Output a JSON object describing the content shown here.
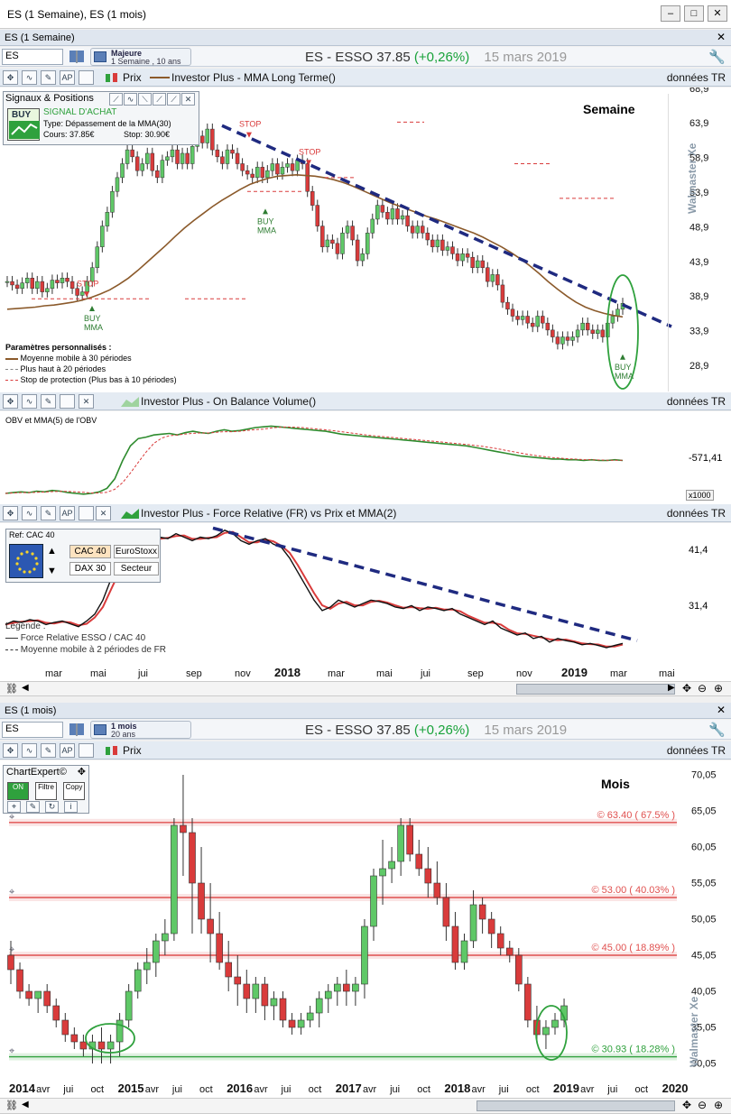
{
  "window": {
    "title": "ES (1 Semaine), ES (1 mois)"
  },
  "weekly": {
    "section_title": "ES (1 Semaine)",
    "symbol": "ES",
    "period": {
      "line1": "Majeure",
      "line2": "1 Semaine , 10 ans"
    },
    "quote": {
      "name": "ES - ESSO",
      "price": "37.85",
      "change": "(+0,26%)",
      "date": "15 mars 2019"
    },
    "price_bar": {
      "prix_label": "Prix",
      "indicator": "Investor Plus - MMA Long Terme()",
      "data_label": "données TR"
    },
    "signals": {
      "title": "Signaux & Positions",
      "buy_label": "BUY",
      "signal": "SIGNAL D'ACHAT",
      "type": "Type:   Dépassement de la MMA(30)",
      "cours": "Cours: 37.85€",
      "stop": "Stop: 30.90€"
    },
    "corner_label": "Semaine",
    "annotations": {
      "stop": "STOP",
      "buy": "BUY",
      "mma": "MMA"
    },
    "params": {
      "title": "Paramètres personnalisés :",
      "items": [
        "Moyenne mobile à 30 périodes",
        "Plus haut à 20 périodes",
        "Stop de protection (Plus bas à 10 périodes)"
      ]
    },
    "watermark": "Walmaster Xe",
    "obv_bar": {
      "indicator": "Investor Plus - On Balance Volume()",
      "data_label": "données TR"
    },
    "obv": {
      "label": "OBV et MMA(5) de l'OBV",
      "tick": "-571,41",
      "multiplier": "x1000"
    },
    "fr_bar": {
      "indicator": "Investor Plus - Force Relative (FR) vs Prix et MMA(2)",
      "data_label": "données TR"
    },
    "fr": {
      "ref": "Ref: CAC 40",
      "buttons": [
        "CAC 40",
        "EuroStoxx",
        "DAX 30",
        "Secteur"
      ],
      "ticks": [
        "41,4",
        "31,4"
      ],
      "legend_title": "Legende :",
      "legend": [
        "Force Relative ESSO / CAC 40",
        "Moyenne mobile à 2 périodes de FR"
      ]
    },
    "x_labels": [
      "mar",
      "mai",
      "jui",
      "sep",
      "nov",
      "2018",
      "mar",
      "mai",
      "jui",
      "sep",
      "nov",
      "2019",
      "mar",
      "mai"
    ]
  },
  "monthly": {
    "section_title": "ES (1 mois)",
    "symbol": "ES",
    "period": {
      "line1": "1 mois",
      "line2": "20 ans"
    },
    "quote": {
      "name": "ES - ESSO",
      "price": "37.85",
      "change": "(+0,26%)",
      "date": "15 mars 2019"
    },
    "price_bar": {
      "prix_label": "Prix",
      "data_label": "données TR"
    },
    "chartexpert": {
      "title": "ChartExpert©",
      "on": "ON",
      "filtre": "Filtre",
      "copy": "Copy"
    },
    "corner_label": "Mois",
    "levels": [
      {
        "label": "© 63.40 ( 67.5% )",
        "value": 63.4,
        "color": "#e0504f"
      },
      {
        "label": "© 53.00 ( 40.03% )",
        "value": 53.0,
        "color": "#e0504f"
      },
      {
        "label": "© 45.00 ( 18.89% )",
        "value": 45.0,
        "color": "#e0504f"
      },
      {
        "label": "© 30.93 ( 18.28% )",
        "value": 30.93,
        "color": "#2fa13d"
      }
    ],
    "watermark": "Walmaster Xe",
    "x_labels": [
      "2014",
      "avr",
      "jui",
      "oct",
      "2015",
      "avr",
      "jui",
      "oct",
      "2016",
      "avr",
      "jui",
      "oct",
      "2017",
      "avr",
      "jui",
      "oct",
      "2018",
      "avr",
      "jui",
      "oct",
      "2019",
      "avr",
      "jui",
      "oct",
      "2020"
    ]
  },
  "chart_data": [
    {
      "type": "candlestick",
      "title": "ES - ESSO (1 Semaine)",
      "ylim": [
        25,
        69
      ],
      "y_ticks": [
        "68,9",
        "63,9",
        "58,9",
        "53,9",
        "48,9",
        "43,9",
        "38,9",
        "33,9",
        "28,9"
      ],
      "x_range": [
        "2017-02",
        "2019-05"
      ],
      "close_path": [
        41,
        40.5,
        40,
        40.8,
        41.5,
        40,
        41,
        39.5,
        40,
        41.2,
        40.8,
        41.5,
        41,
        40,
        39,
        39.5,
        41,
        43,
        46,
        49,
        51,
        54,
        56,
        58,
        60,
        59,
        57,
        58,
        59.5,
        57,
        56,
        58.5,
        59,
        60,
        58,
        59.5,
        58,
        60.5,
        62,
        61,
        63,
        60,
        59,
        58,
        60,
        59.5,
        58,
        57,
        56.5,
        56,
        57.5,
        56,
        57,
        58,
        56.5,
        57.5,
        58,
        57,
        58.5,
        58,
        54,
        52,
        49,
        46,
        47,
        46.5,
        45,
        48,
        49,
        47,
        44,
        45,
        48,
        50,
        52,
        51,
        50,
        51.5,
        50,
        50.5,
        49,
        48,
        49,
        48,
        47,
        46,
        47,
        45.5,
        46,
        45,
        44,
        45,
        44.5,
        43,
        44,
        43,
        41,
        42,
        40.5,
        38,
        37,
        36,
        35.5,
        36,
        35,
        34.5,
        36,
        35,
        34,
        33,
        32,
        33,
        32.5,
        33,
        34,
        35,
        34,
        33.5,
        34,
        33,
        35,
        36,
        37,
        37.85
      ],
      "mma30": [
        37,
        37.1,
        37.2,
        37.3,
        37.5,
        37.6,
        37.8,
        38,
        38.3,
        38.7,
        39.2,
        39.8,
        40.6,
        41.5,
        42.6,
        43.8,
        45,
        46.2,
        47.5,
        48.7,
        49.8,
        50.8,
        51.8,
        52.7,
        53.5,
        54.3,
        55,
        55.5,
        55.9,
        56.2,
        56.3,
        56.4,
        56.3,
        56.2,
        56,
        55.7,
        55.3,
        54.8,
        54.2,
        53.6,
        53,
        52.4,
        51.9,
        51.4,
        50.9,
        50.4,
        50,
        49.5,
        49,
        48.5,
        48,
        47.4,
        46.7,
        46,
        45.2,
        44.3,
        43.3,
        42.2,
        41,
        39.9,
        38.9,
        38,
        37.3,
        36.8,
        36.4,
        36.1,
        35.9
      ],
      "trendline": [
        [
          63.5,
          "2017-09"
        ],
        [
          34.5,
          "2019-05"
        ]
      ],
      "markers": [
        {
          "type": "STOP"
        },
        {
          "type": "BUY MMA"
        },
        {
          "type": "STOP"
        },
        {
          "type": "BUY MMA"
        },
        {
          "type": "STOP"
        },
        {
          "type": "BUY MMA"
        }
      ]
    },
    {
      "type": "line",
      "title": "OBV et MMA(5) de l'OBV",
      "series": [
        {
          "name": "OBV",
          "values": [
            0.05,
            0.06,
            0.07,
            0.06,
            0.08,
            0.07,
            0.09,
            0.08,
            0.06,
            0.05,
            0.04,
            0.05,
            0.07,
            0.12,
            0.25,
            0.5,
            0.7,
            0.8,
            0.82,
            0.85,
            0.86,
            0.87,
            0.85,
            0.88,
            0.9,
            0.88,
            0.87,
            0.9,
            0.92,
            0.9,
            0.91,
            0.93,
            0.95,
            0.96,
            0.97,
            0.96,
            0.95,
            0.94,
            0.93,
            0.92,
            0.91,
            0.9,
            0.88,
            0.86,
            0.85,
            0.84,
            0.83,
            0.82,
            0.81,
            0.8,
            0.79,
            0.78,
            0.77,
            0.76,
            0.75,
            0.74,
            0.73,
            0.72,
            0.71,
            0.7,
            0.68,
            0.66,
            0.64,
            0.62,
            0.6,
            0.58,
            0.56,
            0.55,
            0.54,
            0.53,
            0.52,
            0.52,
            0.51,
            0.51,
            0.5,
            0.51,
            0.5,
            0.5,
            0.51,
            0.5
          ]
        }
      ]
    },
    {
      "type": "line",
      "title": "Force Relative ESSO / CAC 40",
      "ylim": [
        25,
        45
      ],
      "y_ticks": [
        "41,4",
        "31,4"
      ],
      "series": [
        {
          "name": "Force Relative ESSO / CAC 40",
          "values": [
            30.5,
            31,
            30.8,
            31.2,
            31,
            30.5,
            30.8,
            31,
            30.6,
            30.2,
            31,
            32,
            34,
            37,
            39,
            40.5,
            41.5,
            42,
            42.5,
            43,
            42.8,
            43.5,
            43,
            42.5,
            43,
            42.8,
            43.2,
            44,
            43.5,
            42.5,
            42,
            42.5,
            42.8,
            42,
            41.5,
            40,
            38,
            36,
            34,
            32.5,
            33,
            34,
            33.5,
            33,
            33.5,
            34,
            33.8,
            33.5,
            33,
            32.8,
            33.2,
            32.5,
            33,
            32.8,
            32.5,
            32.8,
            32,
            31.5,
            31,
            30.5,
            31,
            30,
            29.5,
            29,
            29.3,
            28.5,
            28.8,
            28,
            28.5,
            28.2,
            28,
            27.6,
            27.8,
            27.5,
            27.2,
            27.5,
            27.8
          ]
        }
      ]
    },
    {
      "type": "candlestick",
      "title": "ES - ESSO (1 mois)",
      "ylim": [
        28,
        72
      ],
      "y_ticks": [
        "70,05",
        "65,05",
        "60,05",
        "55,05",
        "50,05",
        "45,05",
        "40,05",
        "35,05",
        "30,05"
      ],
      "x_range": [
        "2014-01",
        "2020-01"
      ],
      "ohlc": [
        [
          45,
          47,
          41,
          43
        ],
        [
          43,
          44,
          39,
          40
        ],
        [
          40,
          41,
          38,
          39
        ],
        [
          39,
          40,
          37,
          40
        ],
        [
          40,
          41,
          37,
          38
        ],
        [
          38,
          39,
          35,
          36
        ],
        [
          36,
          37,
          33,
          34
        ],
        [
          34,
          35,
          32,
          33
        ],
        [
          33,
          34,
          31,
          32
        ],
        [
          32,
          34,
          30,
          33
        ],
        [
          33,
          35,
          30,
          32
        ],
        [
          32,
          34,
          30,
          33
        ],
        [
          33,
          37,
          31,
          36
        ],
        [
          36,
          41,
          35,
          40
        ],
        [
          40,
          44,
          39,
          43
        ],
        [
          43,
          46,
          41,
          44
        ],
        [
          44,
          48,
          42,
          47
        ],
        [
          47,
          50,
          45,
          48
        ],
        [
          48,
          64,
          47,
          63
        ],
        [
          63,
          70,
          56,
          62
        ],
        [
          62,
          64,
          48,
          55
        ],
        [
          55,
          60,
          48,
          50
        ],
        [
          50,
          55,
          44,
          48
        ],
        [
          48,
          51,
          43,
          44
        ],
        [
          44,
          47,
          40,
          42
        ],
        [
          42,
          45,
          38,
          41
        ],
        [
          41,
          43,
          37,
          39
        ],
        [
          39,
          42,
          37,
          41
        ],
        [
          41,
          42,
          36,
          38
        ],
        [
          38,
          40,
          36,
          39
        ],
        [
          39,
          40,
          35,
          36
        ],
        [
          36,
          37,
          34,
          35
        ],
        [
          35,
          37,
          34,
          36
        ],
        [
          36,
          38,
          35,
          37
        ],
        [
          37,
          40,
          35,
          39
        ],
        [
          39,
          41,
          37,
          40
        ],
        [
          40,
          42,
          38,
          41
        ],
        [
          41,
          43,
          38,
          40
        ],
        [
          40,
          42,
          38,
          41
        ],
        [
          41,
          50,
          39,
          49
        ],
        [
          49,
          57,
          47,
          56
        ],
        [
          56,
          61,
          52,
          57
        ],
        [
          57,
          60,
          55,
          58
        ],
        [
          58,
          64,
          56,
          63
        ],
        [
          63,
          64,
          58,
          59
        ],
        [
          59,
          61,
          56,
          57
        ],
        [
          57,
          60,
          53,
          55
        ],
        [
          55,
          58,
          52,
          53
        ],
        [
          53,
          55,
          47,
          49
        ],
        [
          49,
          51,
          43,
          44
        ],
        [
          44,
          48,
          43,
          47
        ],
        [
          47,
          54,
          46,
          52
        ],
        [
          52,
          53,
          48,
          50
        ],
        [
          50,
          51,
          46,
          48
        ],
        [
          48,
          49,
          45,
          46
        ],
        [
          46,
          47,
          44,
          45
        ],
        [
          45,
          46,
          40,
          41
        ],
        [
          41,
          42,
          35,
          36
        ],
        [
          36,
          38,
          33,
          34
        ],
        [
          34,
          36,
          32,
          35
        ],
        [
          35,
          37,
          34,
          36
        ],
        [
          36,
          39,
          35,
          38
        ]
      ],
      "levels": [
        63.4,
        53.0,
        45.0,
        30.93
      ]
    }
  ]
}
